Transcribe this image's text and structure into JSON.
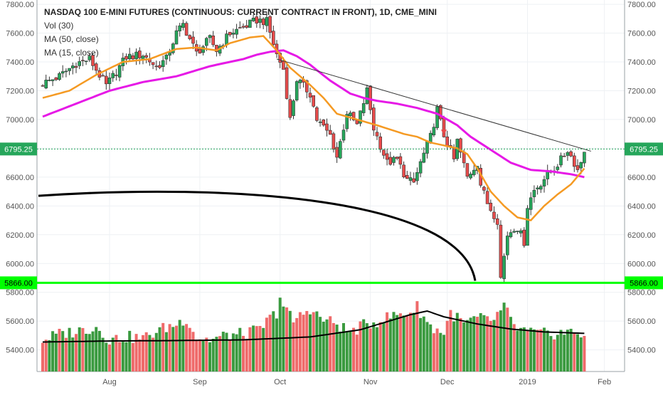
{
  "chart_data": {
    "type": "candlestick",
    "title": "NASDAQ 100 E-MINI FUTURES (CONTINUOUS: CURRENT CONTRACT IN FRONT), 1D, CME_MINI",
    "indicators": [
      "Vol (30)",
      "MA (50, close)",
      "MA (15, close)"
    ],
    "y_ticks": [
      "7800.00",
      "7600.00",
      "7400.00",
      "7200.00",
      "7000.00",
      "6800.00",
      "6600.00",
      "6400.00",
      "6200.00",
      "6000.00",
      "5800.00",
      "5600.00",
      "5400.00"
    ],
    "y_tick_values": [
      7800,
      7600,
      7400,
      7200,
      7000,
      6800,
      6600,
      6400,
      6200,
      6000,
      5800,
      5600,
      5400
    ],
    "ylim": [
      5250,
      7830
    ],
    "x_ticks": [
      {
        "label": "Aug",
        "date": "2018-08-01"
      },
      {
        "label": "Sep",
        "date": "2018-09-04"
      },
      {
        "label": "Oct",
        "date": "2018-10-01"
      },
      {
        "label": "Nov",
        "date": "2018-11-01"
      },
      {
        "label": "Dec",
        "date": "2018-12-03"
      },
      {
        "label": "2019",
        "date": "2019-01-02"
      },
      {
        "label": "Feb",
        "date": "2019-02-01"
      }
    ],
    "price_tag": {
      "label": "6795.25",
      "value": 6795.25,
      "color": "#26a65b"
    },
    "support_line": {
      "label": "5866.00",
      "value": 5866.0,
      "color": "#00ff00"
    },
    "colors": {
      "up": "#26a65b",
      "down": "#e84b4b",
      "vol_up": "#3a9a3f",
      "vol_down": "#ef6a6a",
      "ma50": "#e619e6",
      "ma15": "#f59a23",
      "vol_ma": "#000000",
      "trendline": "#333333",
      "arc": "#000000",
      "marker": "#e84b4b"
    },
    "ohlc_key_points": [
      [
        0,
        7250
      ],
      [
        5,
        7300
      ],
      [
        10,
        7390
      ],
      [
        14,
        7420
      ],
      [
        19,
        7235
      ],
      [
        21,
        7300
      ],
      [
        25,
        7435
      ],
      [
        30,
        7450
      ],
      [
        34,
        7365
      ],
      [
        37,
        7420
      ],
      [
        40,
        7600
      ],
      [
        42,
        7660
      ],
      [
        46,
        7460
      ],
      [
        50,
        7560
      ],
      [
        52,
        7480
      ],
      [
        56,
        7600
      ],
      [
        60,
        7640
      ],
      [
        64,
        7690
      ],
      [
        67,
        7680
      ],
      [
        70,
        7450
      ],
      [
        72,
        7350
      ],
      [
        74,
        7000
      ],
      [
        76,
        7280
      ],
      [
        80,
        7180
      ],
      [
        82,
        7000
      ],
      [
        86,
        6890
      ],
      [
        88,
        6740
      ],
      [
        91,
        7050
      ],
      [
        94,
        6960
      ],
      [
        97,
        7200
      ],
      [
        99,
        6940
      ],
      [
        103,
        6700
      ],
      [
        106,
        6720
      ],
      [
        109,
        6580
      ],
      [
        111,
        6560
      ],
      [
        113,
        6700
      ],
      [
        116,
        6880
      ],
      [
        118,
        7070
      ],
      [
        120,
        6890
      ],
      [
        123,
        6720
      ],
      [
        124,
        6850
      ],
      [
        127,
        6600
      ],
      [
        130,
        6700
      ],
      [
        131,
        6550
      ],
      [
        133,
        6420
      ],
      [
        136,
        6300
      ],
      [
        137,
        5900
      ],
      [
        139,
        6200
      ],
      [
        141,
        6250
      ],
      [
        142,
        6250
      ],
      [
        144,
        6150
      ],
      [
        145,
        6400
      ],
      [
        147,
        6510
      ],
      [
        149,
        6560
      ],
      [
        151,
        6620
      ],
      [
        153,
        6660
      ],
      [
        155,
        6720
      ],
      [
        157,
        6790
      ],
      [
        159,
        6700
      ],
      [
        160,
        6650
      ],
      [
        161,
        6710
      ],
      [
        162,
        6795
      ]
    ],
    "volume_key_points": [
      [
        0,
        5470
      ],
      [
        5,
        5510
      ],
      [
        10,
        5530
      ],
      [
        16,
        5560
      ],
      [
        20,
        5470
      ],
      [
        25,
        5490
      ],
      [
        30,
        5480
      ],
      [
        35,
        5540
      ],
      [
        40,
        5580
      ],
      [
        43,
        5620
      ],
      [
        46,
        5490
      ],
      [
        50,
        5470
      ],
      [
        55,
        5500
      ],
      [
        60,
        5510
      ],
      [
        65,
        5540
      ],
      [
        68,
        5620
      ],
      [
        70,
        5660
      ],
      [
        71,
        5780
      ],
      [
        72,
        5700
      ],
      [
        75,
        5600
      ],
      [
        80,
        5690
      ],
      [
        83,
        5620
      ],
      [
        88,
        5580
      ],
      [
        92,
        5520
      ],
      [
        95,
        5560
      ],
      [
        100,
        5600
      ],
      [
        105,
        5640
      ],
      [
        110,
        5660
      ],
      [
        112,
        5700
      ],
      [
        116,
        5560
      ],
      [
        120,
        5520
      ],
      [
        122,
        5660
      ],
      [
        126,
        5580
      ],
      [
        130,
        5620
      ],
      [
        134,
        5600
      ],
      [
        136,
        5640
      ],
      [
        138,
        5700
      ],
      [
        141,
        5560
      ],
      [
        145,
        5520
      ],
      [
        150,
        5510
      ],
      [
        155,
        5520
      ],
      [
        160,
        5520
      ],
      [
        162,
        5510
      ]
    ],
    "volume_ma_key_points": [
      [
        0,
        5455
      ],
      [
        20,
        5462
      ],
      [
        40,
        5465
      ],
      [
        60,
        5470
      ],
      [
        80,
        5490
      ],
      [
        95,
        5540
      ],
      [
        110,
        5645
      ],
      [
        115,
        5670
      ],
      [
        120,
        5630
      ],
      [
        130,
        5580
      ],
      [
        140,
        5545
      ],
      [
        150,
        5525
      ],
      [
        162,
        5515
      ]
    ],
    "ma50_key_points": [
      [
        0,
        7020
      ],
      [
        10,
        7110
      ],
      [
        20,
        7200
      ],
      [
        30,
        7260
      ],
      [
        40,
        7300
      ],
      [
        50,
        7370
      ],
      [
        60,
        7420
      ],
      [
        64,
        7450
      ],
      [
        68,
        7470
      ],
      [
        72,
        7480
      ],
      [
        76,
        7440
      ],
      [
        80,
        7380
      ],
      [
        86,
        7270
      ],
      [
        92,
        7180
      ],
      [
        96,
        7150
      ],
      [
        100,
        7130
      ],
      [
        106,
        7110
      ],
      [
        112,
        7080
      ],
      [
        118,
        7040
      ],
      [
        124,
        6960
      ],
      [
        128,
        6880
      ],
      [
        134,
        6790
      ],
      [
        140,
        6700
      ],
      [
        146,
        6650
      ],
      [
        152,
        6640
      ],
      [
        158,
        6620
      ],
      [
        162,
        6600
      ]
    ],
    "ma15_key_points": [
      [
        0,
        7150
      ],
      [
        8,
        7200
      ],
      [
        16,
        7310
      ],
      [
        24,
        7400
      ],
      [
        32,
        7420
      ],
      [
        40,
        7490
      ],
      [
        46,
        7500
      ],
      [
        52,
        7480
      ],
      [
        56,
        7530
      ],
      [
        62,
        7570
      ],
      [
        66,
        7580
      ],
      [
        70,
        7480
      ],
      [
        74,
        7360
      ],
      [
        80,
        7240
      ],
      [
        84,
        7150
      ],
      [
        88,
        7040
      ],
      [
        94,
        7000
      ],
      [
        100,
        6960
      ],
      [
        108,
        6900
      ],
      [
        112,
        6880
      ],
      [
        116,
        6840
      ],
      [
        120,
        6820
      ],
      [
        124,
        6800
      ],
      [
        127,
        6760
      ],
      [
        130,
        6660
      ],
      [
        134,
        6500
      ],
      [
        138,
        6400
      ],
      [
        142,
        6320
      ],
      [
        146,
        6300
      ],
      [
        150,
        6400
      ],
      [
        154,
        6480
      ],
      [
        158,
        6550
      ],
      [
        162,
        6660
      ]
    ],
    "trendline": {
      "x1": 70,
      "y1": 7420,
      "x2": 164,
      "y2": 6780
    },
    "arc": {
      "from_x": 0,
      "from_y": 6470,
      "to_x": 130,
      "to_y": 5880,
      "peak_y": 6510
    },
    "marker": {
      "x": 120,
      "y": 6910
    }
  }
}
